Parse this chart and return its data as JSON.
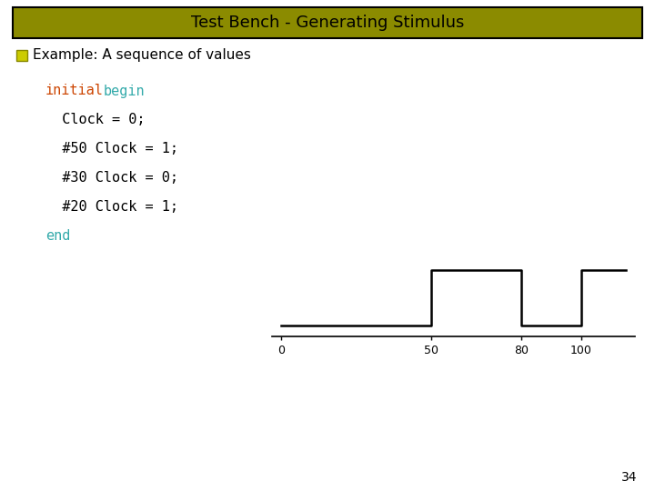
{
  "title": "Test Bench - Generating Stimulus",
  "title_bg_color": "#8B8B00",
  "title_text_color": "#000000",
  "slide_bg_color": "#ffffff",
  "bullet_text": "Example: A sequence of values",
  "bullet_color": "#000000",
  "bullet_marker_color": "#CCCC00",
  "waveform_x": [
    0,
    50,
    50,
    80,
    80,
    100,
    100,
    115
  ],
  "waveform_y": [
    0,
    0,
    1,
    1,
    0,
    0,
    1,
    1
  ],
  "waveform_xticks": [
    0,
    50,
    80,
    100
  ],
  "waveform_color": "#000000",
  "waveform_lw": 1.8,
  "page_number": "34"
}
